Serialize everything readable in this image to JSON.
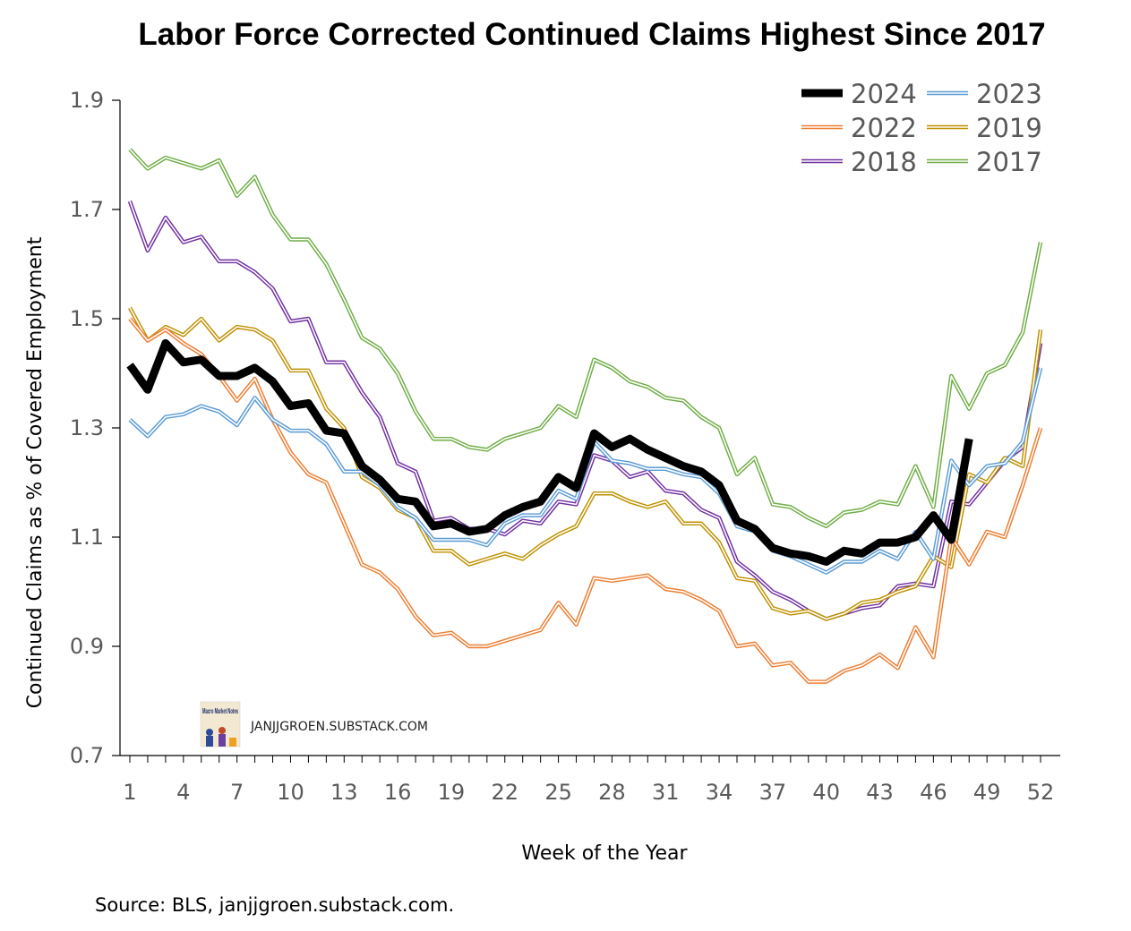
{
  "chart_data": {
    "type": "line",
    "title": "Labor Force Corrected Continued Claims Highest Since 2017",
    "xlabel": "Week of the Year",
    "ylabel": "Continued Claims as % of Covered Employment",
    "xlim": [
      1,
      52
    ],
    "ylim": [
      0.7,
      1.9
    ],
    "yticks": [
      0.7,
      0.9,
      1.1,
      1.3,
      1.5,
      1.7,
      1.9
    ],
    "ytick_labels": [
      "0.7",
      "0.9",
      "1.1",
      "1.3",
      "1.5",
      "1.7",
      "1.9"
    ],
    "xticks": [
      1,
      4,
      7,
      10,
      13,
      16,
      19,
      22,
      25,
      28,
      31,
      34,
      37,
      40,
      43,
      46,
      49,
      52
    ],
    "xtick_labels": [
      "1",
      "4",
      "7",
      "10",
      "13",
      "16",
      "19",
      "22",
      "25",
      "28",
      "31",
      "34",
      "37",
      "40",
      "43",
      "46",
      "49",
      "52"
    ],
    "grid": false,
    "legend_position": "top-right",
    "source": "Source: BLS, janjjgroen.substack.com.",
    "watermark": "JANJJGROEN.SUBSTACK.COM",
    "logo_text": "Macro Market Notes",
    "series": [
      {
        "name": "2017",
        "color": "#70AD47",
        "style": "double",
        "values": [
          1.81,
          1.775,
          1.795,
          1.785,
          1.775,
          1.79,
          1.725,
          1.76,
          1.69,
          1.645,
          1.645,
          1.6,
          1.535,
          1.465,
          1.445,
          1.4,
          1.33,
          1.28,
          1.28,
          1.265,
          1.26,
          1.28,
          1.29,
          1.3,
          1.34,
          1.32,
          1.425,
          1.41,
          1.385,
          1.375,
          1.355,
          1.35,
          1.32,
          1.3,
          1.215,
          1.245,
          1.16,
          1.155,
          1.135,
          1.12,
          1.145,
          1.15,
          1.165,
          1.16,
          1.23,
          1.155,
          1.395,
          1.335,
          1.4,
          1.415,
          1.475,
          1.64
        ]
      },
      {
        "name": "2018",
        "color": "#7030A0",
        "style": "double",
        "values": [
          1.715,
          1.625,
          1.685,
          1.64,
          1.65,
          1.605,
          1.605,
          1.585,
          1.555,
          1.495,
          1.5,
          1.42,
          1.42,
          1.365,
          1.32,
          1.235,
          1.22,
          1.13,
          1.135,
          1.115,
          1.115,
          1.105,
          1.13,
          1.125,
          1.165,
          1.16,
          1.25,
          1.24,
          1.21,
          1.22,
          1.185,
          1.18,
          1.15,
          1.135,
          1.055,
          1.03,
          1.0,
          0.985,
          0.965,
          0.95,
          0.96,
          0.97,
          0.975,
          1.01,
          1.015,
          1.01,
          1.165,
          1.16,
          1.2,
          1.24,
          1.265,
          1.455
        ]
      },
      {
        "name": "2019",
        "color": "#BF9000",
        "style": "double",
        "values": [
          1.52,
          1.46,
          1.485,
          1.47,
          1.5,
          1.46,
          1.485,
          1.48,
          1.46,
          1.405,
          1.405,
          1.335,
          1.3,
          1.21,
          1.19,
          1.15,
          1.135,
          1.075,
          1.075,
          1.05,
          1.06,
          1.07,
          1.06,
          1.085,
          1.105,
          1.12,
          1.18,
          1.18,
          1.165,
          1.155,
          1.165,
          1.125,
          1.125,
          1.09,
          1.025,
          1.02,
          0.97,
          0.96,
          0.965,
          0.95,
          0.96,
          0.98,
          0.985,
          1.0,
          1.01,
          1.065,
          1.045,
          1.215,
          1.2,
          1.245,
          1.23,
          1.48
        ]
      },
      {
        "name": "2022",
        "color": "#ED7D31",
        "style": "double",
        "values": [
          1.5,
          1.46,
          1.48,
          1.455,
          1.435,
          1.395,
          1.35,
          1.39,
          1.315,
          1.255,
          1.215,
          1.2,
          1.125,
          1.05,
          1.035,
          1.005,
          0.955,
          0.92,
          0.925,
          0.9,
          0.9,
          0.91,
          0.92,
          0.93,
          0.98,
          0.94,
          1.025,
          1.02,
          1.025,
          1.03,
          1.005,
          1.0,
          0.985,
          0.965,
          0.9,
          0.905,
          0.865,
          0.87,
          0.835,
          0.835,
          0.855,
          0.865,
          0.885,
          0.86,
          0.935,
          0.88,
          1.1,
          1.05,
          1.11,
          1.1,
          1.195,
          1.3
        ]
      },
      {
        "name": "2023",
        "color": "#5B9BD5",
        "style": "double",
        "values": [
          1.315,
          1.285,
          1.32,
          1.325,
          1.34,
          1.33,
          1.305,
          1.355,
          1.315,
          1.295,
          1.295,
          1.27,
          1.22,
          1.22,
          1.195,
          1.155,
          1.135,
          1.095,
          1.095,
          1.095,
          1.085,
          1.125,
          1.14,
          1.14,
          1.185,
          1.17,
          1.275,
          1.24,
          1.235,
          1.225,
          1.225,
          1.215,
          1.21,
          1.18,
          1.12,
          1.11,
          1.075,
          1.065,
          1.05,
          1.035,
          1.055,
          1.055,
          1.075,
          1.06,
          1.11,
          1.06,
          1.24,
          1.195,
          1.23,
          1.235,
          1.275,
          1.41
        ]
      },
      {
        "name": "2024",
        "color": "#000000",
        "style": "thick",
        "values": [
          1.415,
          1.37,
          1.455,
          1.42,
          1.425,
          1.395,
          1.395,
          1.41,
          1.385,
          1.34,
          1.345,
          1.295,
          1.29,
          1.23,
          1.205,
          1.17,
          1.165,
          1.12,
          1.125,
          1.11,
          1.115,
          1.14,
          1.155,
          1.165,
          1.21,
          1.19,
          1.29,
          1.265,
          1.28,
          1.26,
          1.245,
          1.23,
          1.22,
          1.195,
          1.13,
          1.115,
          1.08,
          1.07,
          1.065,
          1.055,
          1.075,
          1.07,
          1.09,
          1.09,
          1.1,
          1.14,
          1.095,
          1.28
        ]
      }
    ],
    "legend_order": [
      "2024",
      "2023",
      "2022",
      "2019",
      "2018",
      "2017"
    ]
  }
}
